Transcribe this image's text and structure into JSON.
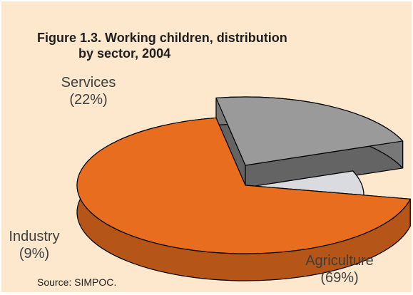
{
  "figure": {
    "title_line_1": "Figure 1.3. Working children, distribution",
    "title_line_2": "by sector, 2004",
    "source": "Source: SIMPOC."
  },
  "colors": {
    "background": "#fde7cd",
    "agriculture": "#e86d1f",
    "services": "#9a9a9a",
    "industry": "#d9dbdf",
    "outline": "#000000"
  },
  "chart_data": {
    "type": "pie",
    "title": "Figure 1.3. Working children, distribution by sector, 2004",
    "slices": [
      {
        "label": "Services",
        "value": 22,
        "value_label": "(22%)",
        "color": "#9a9a9a"
      },
      {
        "label": "Industry",
        "value": 9,
        "value_label": "(9%)",
        "color": "#d9dbdf"
      },
      {
        "label": "Agriculture",
        "value": 69,
        "value_label": "(69%)",
        "color": "#e86d1f"
      }
    ],
    "style": "3d-exploded",
    "legend": "none"
  }
}
